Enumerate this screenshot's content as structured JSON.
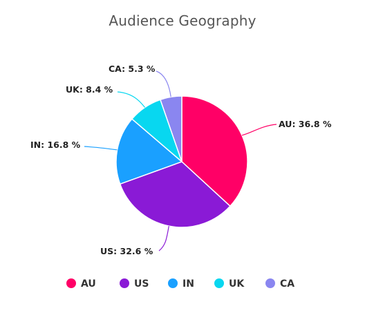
{
  "chart_data": {
    "type": "pie",
    "title": "Audience Geography",
    "categories": [
      "AU",
      "US",
      "IN",
      "UK",
      "CA"
    ],
    "values": [
      36.8,
      32.6,
      16.8,
      8.4,
      5.3
    ],
    "value_suffix": " %",
    "labels": [
      "AU: 36.8 %",
      "US: 32.6 %",
      "IN: 16.8 %",
      "UK: 8.4 %",
      "CA: 5.3 %"
    ],
    "colors": [
      "#ff0066",
      "#8a1ad6",
      "#1aa0ff",
      "#08d7f0",
      "#8a86f0"
    ],
    "legend": [
      "AU",
      "US",
      "IN",
      "UK",
      "CA"
    ],
    "legend_position": "bottom",
    "start_angle": "top",
    "direction": "clockwise"
  }
}
